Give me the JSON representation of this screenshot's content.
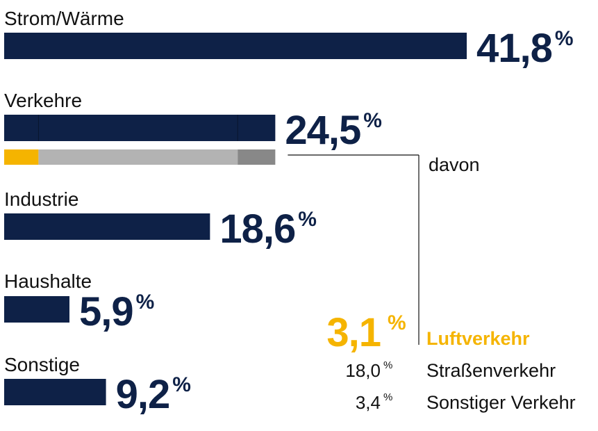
{
  "colors": {
    "bar": "#0e2147",
    "value": "#0e2147",
    "highlight": "#f5b400",
    "sub_main": "#b3b3b3",
    "sub_other": "#888888",
    "connector": "#111111"
  },
  "davon_label": "davon",
  "percent_sign": "%",
  "chart_data": {
    "type": "bar",
    "orientation": "horizontal",
    "unit": "%",
    "categories": [
      "Strom/Wärme",
      "Verkehre",
      "Industrie",
      "Haushalte",
      "Sonstige"
    ],
    "values": [
      41.8,
      24.5,
      18.6,
      5.9,
      9.2
    ],
    "value_labels": [
      "41,8",
      "24,5",
      "18,6",
      "5,9",
      "9,2"
    ],
    "breakdown": {
      "parent": "Verkehre",
      "label": "davon",
      "items": [
        {
          "name": "Luftverkehr",
          "value": 3.1,
          "value_label": "3,1",
          "highlight": true
        },
        {
          "name": "Straßenverkehr",
          "value": 18.0,
          "value_label": "18,0",
          "highlight": false
        },
        {
          "name": "Sonstiger Verkehr",
          "value": 3.4,
          "value_label": "3,4",
          "highlight": false
        }
      ]
    },
    "xlim": [
      0,
      41.8
    ],
    "grid": false,
    "legend": "none"
  }
}
